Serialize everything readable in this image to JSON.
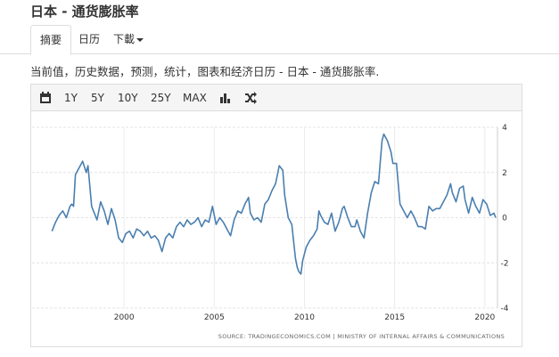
{
  "header": {
    "title": "日本 - 通货膨胀率"
  },
  "tabs": [
    "摘要",
    "日历",
    "下載"
  ],
  "description": "当前值，历史数据，预测，统计，图表和经济日历 - 日本 - 通货膨胀率.",
  "toolbar": [
    "1Y",
    "5Y",
    "10Y",
    "25Y",
    "MAX"
  ],
  "chart_data": {
    "type": "line",
    "color": "#4a7fb0",
    "grid": true,
    "source": "SOURCE: TRADINGECONOMICS.COM | MINISTRY OF INTERNAL AFFAIRS & COMMUNICATIONS",
    "x": [
      1996.0,
      1996.2,
      1996.4,
      1996.6,
      1996.8,
      1997.0,
      1997.1,
      1997.2,
      1997.3,
      1997.5,
      1997.7,
      1997.9,
      1998.0,
      1998.2,
      1998.5,
      1998.7,
      1998.9,
      1999.1,
      1999.3,
      1999.5,
      1999.7,
      1999.9,
      2000.1,
      2000.3,
      2000.5,
      2000.7,
      2000.9,
      2001.1,
      2001.3,
      2001.5,
      2001.7,
      2001.9,
      2002.1,
      2002.3,
      2002.5,
      2002.7,
      2002.9,
      2003.1,
      2003.3,
      2003.5,
      2003.7,
      2003.9,
      2004.1,
      2004.3,
      2004.5,
      2004.7,
      2004.9,
      2005.1,
      2005.3,
      2005.5,
      2005.7,
      2005.9,
      2006.1,
      2006.3,
      2006.5,
      2006.7,
      2006.9,
      2007.0,
      2007.2,
      2007.4,
      2007.6,
      2007.8,
      2008.0,
      2008.2,
      2008.4,
      2008.6,
      2008.8,
      2008.9,
      2009.1,
      2009.3,
      2009.5,
      2009.6,
      2009.7,
      2009.8,
      2009.9,
      2010.1,
      2010.3,
      2010.5,
      2010.7,
      2010.8,
      2010.9,
      2011.1,
      2011.3,
      2011.5,
      2011.7,
      2011.9,
      2012.1,
      2012.2,
      2012.4,
      2012.6,
      2012.8,
      2012.9,
      2013.1,
      2013.3,
      2013.5,
      2013.7,
      2013.9,
      2014.1,
      2014.3,
      2014.4,
      2014.6,
      2014.8,
      2014.9,
      2015.1,
      2015.3,
      2015.5,
      2015.7,
      2015.9,
      2016.1,
      2016.3,
      2016.5,
      2016.7,
      2016.9,
      2017.1,
      2017.3,
      2017.5,
      2017.7,
      2017.9,
      2018.1,
      2018.2,
      2018.4,
      2018.6,
      2018.8,
      2018.9,
      2019.1,
      2019.3,
      2019.5,
      2019.7,
      2019.9,
      2020.1,
      2020.3,
      2020.5,
      2020.6
    ],
    "values": [
      -0.6,
      -0.2,
      0.1,
      0.3,
      0.0,
      0.5,
      0.6,
      0.5,
      1.9,
      2.2,
      2.5,
      2.0,
      2.3,
      0.5,
      -0.1,
      0.7,
      0.3,
      -0.3,
      0.4,
      -0.1,
      -0.9,
      -1.1,
      -0.7,
      -0.6,
      -0.9,
      -0.5,
      -0.6,
      -0.8,
      -0.6,
      -0.9,
      -0.8,
      -1.0,
      -1.5,
      -0.9,
      -0.7,
      -0.9,
      -0.4,
      -0.2,
      -0.4,
      -0.1,
      -0.3,
      -0.2,
      0.0,
      -0.4,
      -0.1,
      -0.2,
      0.5,
      -0.3,
      0.0,
      -0.2,
      -0.5,
      -0.8,
      -0.1,
      0.3,
      0.2,
      0.6,
      0.9,
      0.2,
      -0.1,
      0.0,
      -0.2,
      0.6,
      0.8,
      1.2,
      1.5,
      2.3,
      2.1,
      1.0,
      0.0,
      -0.3,
      -1.8,
      -2.2,
      -2.4,
      -2.5,
      -1.9,
      -1.3,
      -1.0,
      -0.8,
      -0.5,
      0.3,
      0.1,
      -0.2,
      -0.3,
      0.2,
      -0.6,
      -0.2,
      0.4,
      0.5,
      0.0,
      -0.4,
      -0.4,
      -0.1,
      -0.6,
      -0.9,
      0.2,
      1.1,
      1.6,
      1.5,
      3.4,
      3.7,
      3.4,
      2.9,
      2.4,
      2.4,
      0.6,
      0.3,
      0.0,
      0.3,
      0.0,
      -0.4,
      -0.4,
      -0.5,
      0.5,
      0.3,
      0.4,
      0.4,
      0.7,
      1.0,
      1.5,
      1.1,
      0.7,
      1.3,
      1.4,
      0.8,
      0.2,
      0.9,
      0.5,
      0.2,
      0.8,
      0.6,
      0.1,
      0.2,
      0.0
    ],
    "xlim": [
      1994.9,
      2020.7
    ],
    "xticks": [
      2000,
      2005,
      2010,
      2015,
      2020
    ],
    "ylim": [
      -4,
      4
    ],
    "yticks": [
      -4,
      -2,
      0,
      2,
      4
    ]
  }
}
